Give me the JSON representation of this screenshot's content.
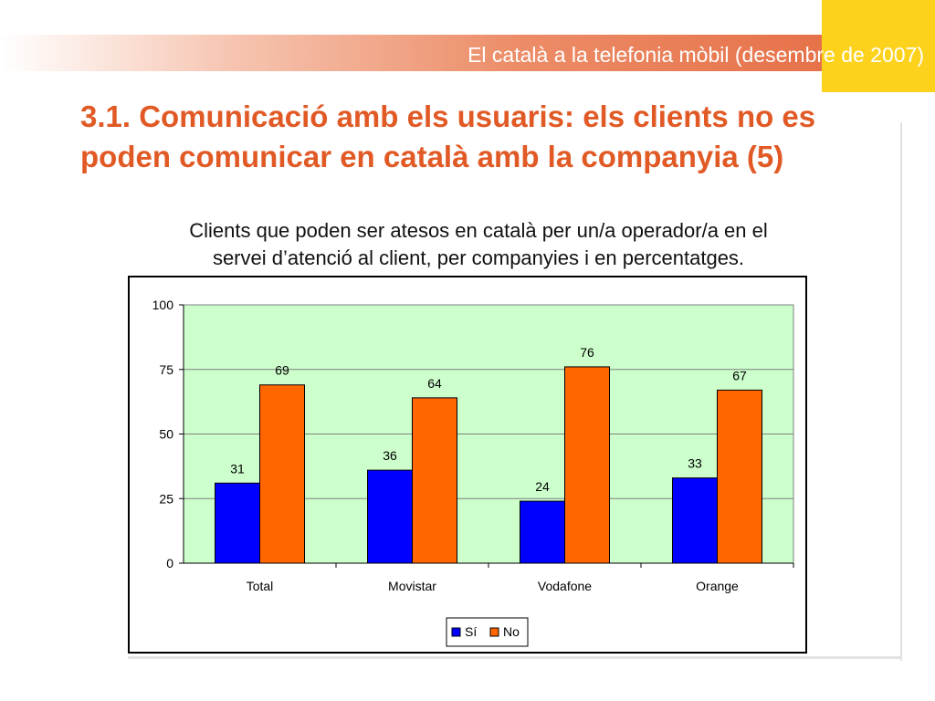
{
  "header": {
    "title": "El català a la telefonia mòbil (desembre de 2007)"
  },
  "slide": {
    "title": "3.1. Comunicació amb els usuaris: els clients no es poden comunicar en català amb la companyia (5)",
    "subtitle_line1": "Clients que poden ser atesos en català per un/a operador/a en el",
    "subtitle_line2": "servei d’atenció al client, per companyies i en percentatges."
  },
  "colors": {
    "accent_orange": "#e15a25",
    "header_yellow": "#fdd21d",
    "plot_background": "#ccffcc",
    "series_si": "#0000ff",
    "series_no": "#ff6600"
  },
  "chart_data": {
    "type": "bar",
    "title": "",
    "xlabel": "",
    "ylabel": "",
    "categories": [
      "Total",
      "Movistar",
      "Vodafone",
      "Orange"
    ],
    "series": [
      {
        "name": "Sí",
        "values": [
          31,
          36,
          24,
          33
        ],
        "color": "#0000ff"
      },
      {
        "name": "No",
        "values": [
          69,
          64,
          76,
          67
        ],
        "color": "#ff6600"
      }
    ],
    "ylim": [
      0,
      100
    ],
    "yticks": [
      0,
      25,
      50,
      75,
      100
    ],
    "grid": true,
    "data_labels": true,
    "legend_position": "bottom"
  }
}
